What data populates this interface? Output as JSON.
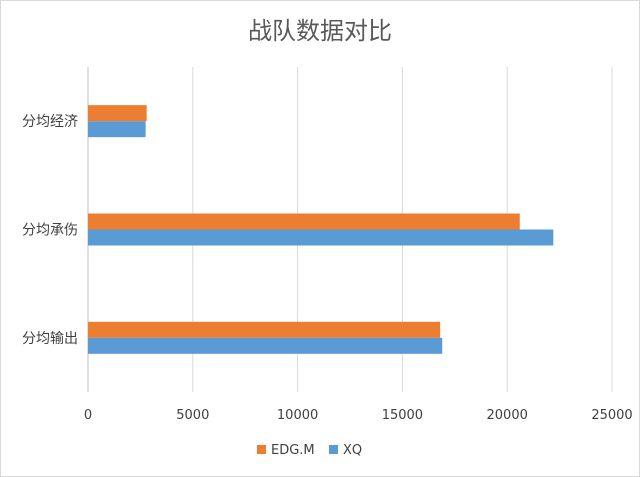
{
  "chart_data": {
    "type": "bar",
    "orientation": "horizontal",
    "title": "战队数据对比",
    "categories": [
      "分均输出",
      "分均承伤",
      "分均经济"
    ],
    "series": [
      {
        "name": "EDG.M",
        "color": "#ED7D31",
        "values": [
          16800,
          20600,
          2800
        ]
      },
      {
        "name": "XQ",
        "color": "#5B9BD5",
        "values": [
          16900,
          22200,
          2750
        ]
      }
    ],
    "xlim": [
      0,
      25000
    ],
    "x_ticks": [
      "0",
      "5000",
      "10000",
      "15000",
      "20000",
      "25000"
    ],
    "x_tick_values": [
      0,
      5000,
      10000,
      15000,
      20000,
      25000
    ],
    "grid": true,
    "legend_position": "bottom"
  }
}
